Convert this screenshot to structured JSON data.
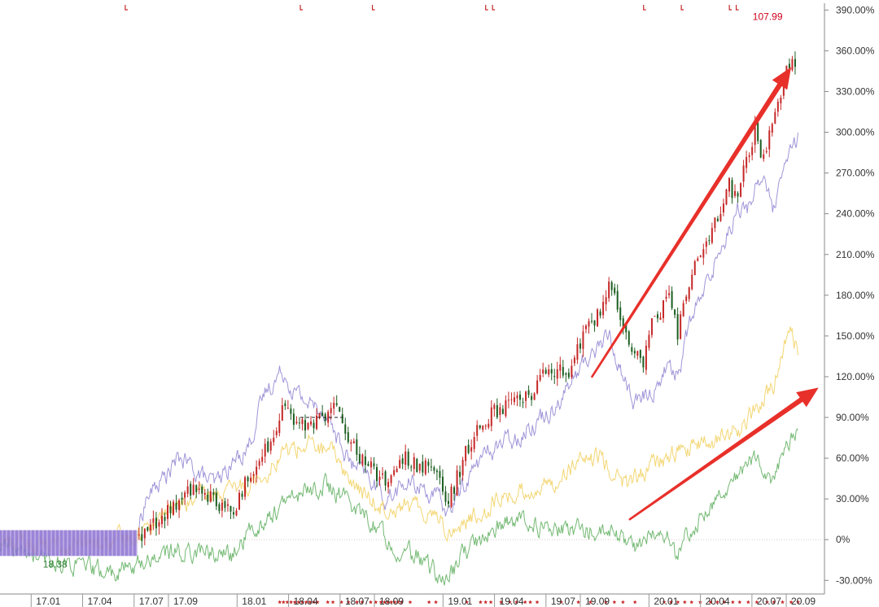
{
  "chart_data": {
    "type": "line",
    "title": "",
    "xlabel": "",
    "ylabel": "",
    "y_unit": "%",
    "ylim": [
      -40,
      395
    ],
    "y_ticks": [
      -30,
      0,
      30,
      60,
      90,
      120,
      150,
      180,
      210,
      240,
      270,
      300,
      330,
      360,
      390
    ],
    "y_tick_labels": [
      "-30.00%",
      "0%",
      "30.00%",
      "60.00%",
      "90.00%",
      "120.00%",
      "150.00%",
      "180.00%",
      "210.00%",
      "240.00%",
      "270.00%",
      "300.00%",
      "330.00%",
      "360.00%",
      "390.00%"
    ],
    "x_tick_labels": [
      "17.01",
      "17.04",
      "17.07",
      "17.09",
      "18.01",
      "18.04",
      "18.07",
      "18.09",
      "19.01",
      "19.04",
      "19.07",
      "19.09",
      "20.01",
      "20.04",
      "20.07",
      "20.09"
    ],
    "x_ticks": [
      0.6,
      3.6,
      6.6,
      8.6,
      12.6,
      15.6,
      18.6,
      20.6,
      24.6,
      27.6,
      30.6,
      32.6,
      36.6,
      39.6,
      42.6,
      44.6
    ],
    "xlim": [
      -1.5,
      46.4
    ],
    "grid": false,
    "annotations": [
      {
        "text": "107.99",
        "x": 44.1,
        "y": 385,
        "color": "#d0021b"
      },
      {
        "text": "18.38",
        "x": 1.0,
        "y": -18,
        "color": "#2e7d32"
      }
    ],
    "series": [
      {
        "kind": "candlestick",
        "color_up": "#c62828",
        "color_down": "#1b5e20",
        "x": [
          6.6,
          8.0,
          9.0,
          10.0,
          11.0,
          12.0,
          13.0,
          14.0,
          15.0,
          15.6,
          16.5,
          17.5,
          18.3,
          18.6,
          19.2,
          20.0,
          21.0,
          22.0,
          23.0,
          24.0,
          24.6,
          25.5,
          26.5,
          27.5,
          28.5,
          29.5,
          30.5,
          31.5,
          32.5,
          33.5,
          34.0,
          34.5,
          35.0,
          35.5,
          36.0,
          36.6,
          37.5,
          38.0,
          38.5,
          39.0,
          39.5,
          40.0,
          40.5,
          41.0,
          41.5,
          42.0,
          42.5,
          43.0,
          43.5,
          44.0,
          44.5,
          45.0
        ],
        "y": [
          2,
          15,
          28,
          40,
          30,
          20,
          45,
          65,
          95,
          85,
          88,
          90,
          100,
          75,
          65,
          55,
          40,
          60,
          55,
          45,
          25,
          60,
          85,
          95,
          100,
          110,
          130,
          120,
          150,
          170,
          185,
          170,
          150,
          140,
          130,
          165,
          175,
          150,
          185,
          200,
          215,
          230,
          245,
          260,
          255,
          280,
          300,
          280,
          310,
          330,
          350,
          345
        ]
      },
      {
        "kind": "line",
        "color": "#9b8fd6",
        "x": [
          6.6,
          7.0,
          8.0,
          9.0,
          10.0,
          11.0,
          12.0,
          13.0,
          14.0,
          15.0,
          15.6,
          16.5,
          17.5,
          18.3,
          19.0,
          20.0,
          21.0,
          22.0,
          23.0,
          24.0,
          24.6,
          25.5,
          26.5,
          27.5,
          28.5,
          29.5,
          30.5,
          31.5,
          32.5,
          33.5,
          34.0,
          34.5,
          35.5,
          36.6,
          37.5,
          38.0,
          38.5,
          39.0,
          39.5,
          40.0,
          40.5,
          41.0,
          41.5,
          42.0,
          42.5,
          43.0,
          43.5,
          44.0,
          44.5,
          45.0
        ],
        "y": [
          10,
          30,
          45,
          60,
          50,
          40,
          55,
          70,
          110,
          125,
          110,
          100,
          95,
          70,
          55,
          45,
          30,
          40,
          40,
          30,
          20,
          40,
          60,
          70,
          75,
          85,
          95,
          110,
          130,
          145,
          150,
          130,
          100,
          110,
          130,
          120,
          150,
          170,
          180,
          200,
          215,
          230,
          245,
          240,
          260,
          270,
          240,
          260,
          285,
          295
        ]
      },
      {
        "kind": "line",
        "color": "#f2d46c",
        "x": [
          -1.5,
          2.0,
          5.0,
          6.6,
          8.0,
          10.0,
          12.0,
          14.0,
          15.0,
          16.5,
          18.3,
          19.0,
          20.5,
          22.0,
          24.0,
          24.6,
          26.0,
          27.5,
          29.0,
          30.5,
          32.0,
          33.5,
          35.0,
          36.6,
          38.0,
          39.5,
          40.5,
          41.5,
          42.5,
          43.5,
          44.5,
          45.0
        ],
        "y": [
          0,
          -5,
          -3,
          5,
          20,
          30,
          35,
          50,
          65,
          70,
          60,
          40,
          25,
          25,
          20,
          5,
          15,
          30,
          35,
          40,
          55,
          60,
          40,
          55,
          65,
          70,
          75,
          80,
          95,
          110,
          155,
          140
        ]
      },
      {
        "kind": "line",
        "color": "#6db56d",
        "x": [
          -1.5,
          1.0,
          3.0,
          5.0,
          6.6,
          8.0,
          10.0,
          12.0,
          13.0,
          14.5,
          16.0,
          17.5,
          18.6,
          20.0,
          21.5,
          23.0,
          24.0,
          24.6,
          25.5,
          26.5,
          27.5,
          29.0,
          30.5,
          32.0,
          34.0,
          35.5,
          36.6,
          37.5,
          38.0,
          38.5,
          39.5,
          40.5,
          41.5,
          42.5,
          43.5,
          44.5,
          45.0
        ],
        "y": [
          -5,
          -15,
          -20,
          -25,
          -18,
          -10,
          -8,
          -12,
          5,
          20,
          35,
          40,
          30,
          15,
          -5,
          -15,
          -25,
          -30,
          -10,
          0,
          10,
          15,
          5,
          8,
          5,
          -5,
          5,
          0,
          -15,
          5,
          20,
          35,
          50,
          60,
          45,
          70,
          80
        ]
      }
    ]
  },
  "overlay": {
    "shaded_box": {
      "x0": -1.5,
      "x1": 6.5,
      "y0": -12,
      "y1": 7,
      "color": "#8a6fd1"
    },
    "dashed_level": {
      "x0": 16.0,
      "x1": 18.5,
      "y": 90,
      "color": "#222222"
    },
    "arrows": [
      {
        "x0": 33.0,
        "y0": 120,
        "x1": 44.6,
        "y1": 348,
        "color": "#e8302a"
      },
      {
        "x0": 35.2,
        "y0": 15,
        "x1": 46.2,
        "y1": 112,
        "color": "#e8302a"
      }
    ],
    "star_row": {
      "y": -46,
      "color": "#c62828"
    },
    "accent": "#c62828"
  }
}
